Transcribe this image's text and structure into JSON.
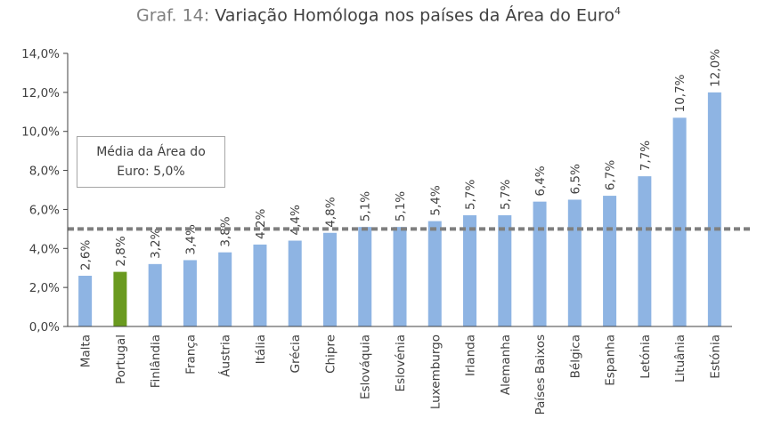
{
  "title": {
    "prefix": "Graf. 14: ",
    "main": "Variação Homóloga nos países da Área do Euro",
    "superscript": "4"
  },
  "annotation": {
    "line1": "Média da Área do",
    "line2": "Euro: 5,0%"
  },
  "colors": {
    "bar": "#8eb4e3",
    "highlight": "#6a9a1f",
    "average_line": "#7f7f7f",
    "axis": "#404040"
  },
  "chart_data": {
    "type": "bar",
    "title": "Variação Homóloga nos países da Área do Euro",
    "xlabel": "",
    "ylabel": "",
    "ylim": [
      0,
      14
    ],
    "yticks": [
      "0,0%",
      "2,0%",
      "4,0%",
      "6,0%",
      "8,0%",
      "10,0%",
      "12,0%",
      "14,0%"
    ],
    "categories": [
      "Malta",
      "Portugal",
      "Finlândia",
      "França",
      "Áustria",
      "Itália",
      "Grécia",
      "Chipre",
      "Eslováquia",
      "Eslovénia",
      "Luxemburgo",
      "Irlanda",
      "Alemanha",
      "Países Baixos",
      "Bélgica",
      "Espanha",
      "Letónia",
      "Lituânia",
      "Estónia"
    ],
    "values": [
      2.6,
      2.8,
      3.2,
      3.4,
      3.8,
      4.2,
      4.4,
      4.8,
      5.1,
      5.1,
      5.4,
      5.7,
      5.7,
      6.4,
      6.5,
      6.7,
      7.7,
      10.7,
      12.0
    ],
    "data_labels": [
      "2,6%",
      "2,8%",
      "3,2%",
      "3,4%",
      "3,8%",
      "4,2%",
      "4,4%",
      "4,8%",
      "5,1%",
      "5,1%",
      "5,4%",
      "5,7%",
      "5,7%",
      "6,4%",
      "6,5%",
      "6,7%",
      "7,7%",
      "10,7%",
      "12,0%"
    ],
    "highlight": "Portugal",
    "average_line": 5.0,
    "grid": false,
    "legend": "none"
  }
}
